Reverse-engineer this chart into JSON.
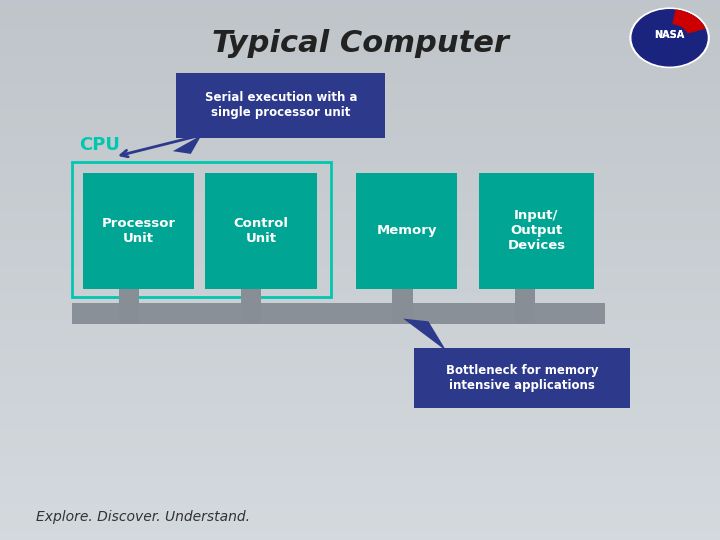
{
  "title": "Typical Computer",
  "title_style": "italic bold",
  "title_fontsize": 22,
  "title_color": "#222222",
  "bg_color": "#b8bec7",
  "bg_gradient_top": "#d4d8de",
  "bg_gradient_bottom": "#9aa0a8",
  "teal_color": "#00a693",
  "teal_dark": "#008f80",
  "cpu_border_color": "#00c8b0",
  "cpu_label_color": "#00c8b0",
  "gray_bar_color": "#8a9098",
  "gray_leg_color": "#888e96",
  "callout_bg": "#2d3a8c",
  "callout_text_color": "#ffffff",
  "callout1_text": "Serial execution with a\nsingle processor unit",
  "callout2_text": "Bottleneck for memory\nintensive applications",
  "cpu_label": "CPU",
  "boxes": [
    "Processor\nUnit",
    "Control\nUnit",
    "Memory",
    "Input/\nOutput\nDevices"
  ],
  "footer": "Explore. Discover. Understand.",
  "footer_fontsize": 10,
  "footer_color": "#333333"
}
